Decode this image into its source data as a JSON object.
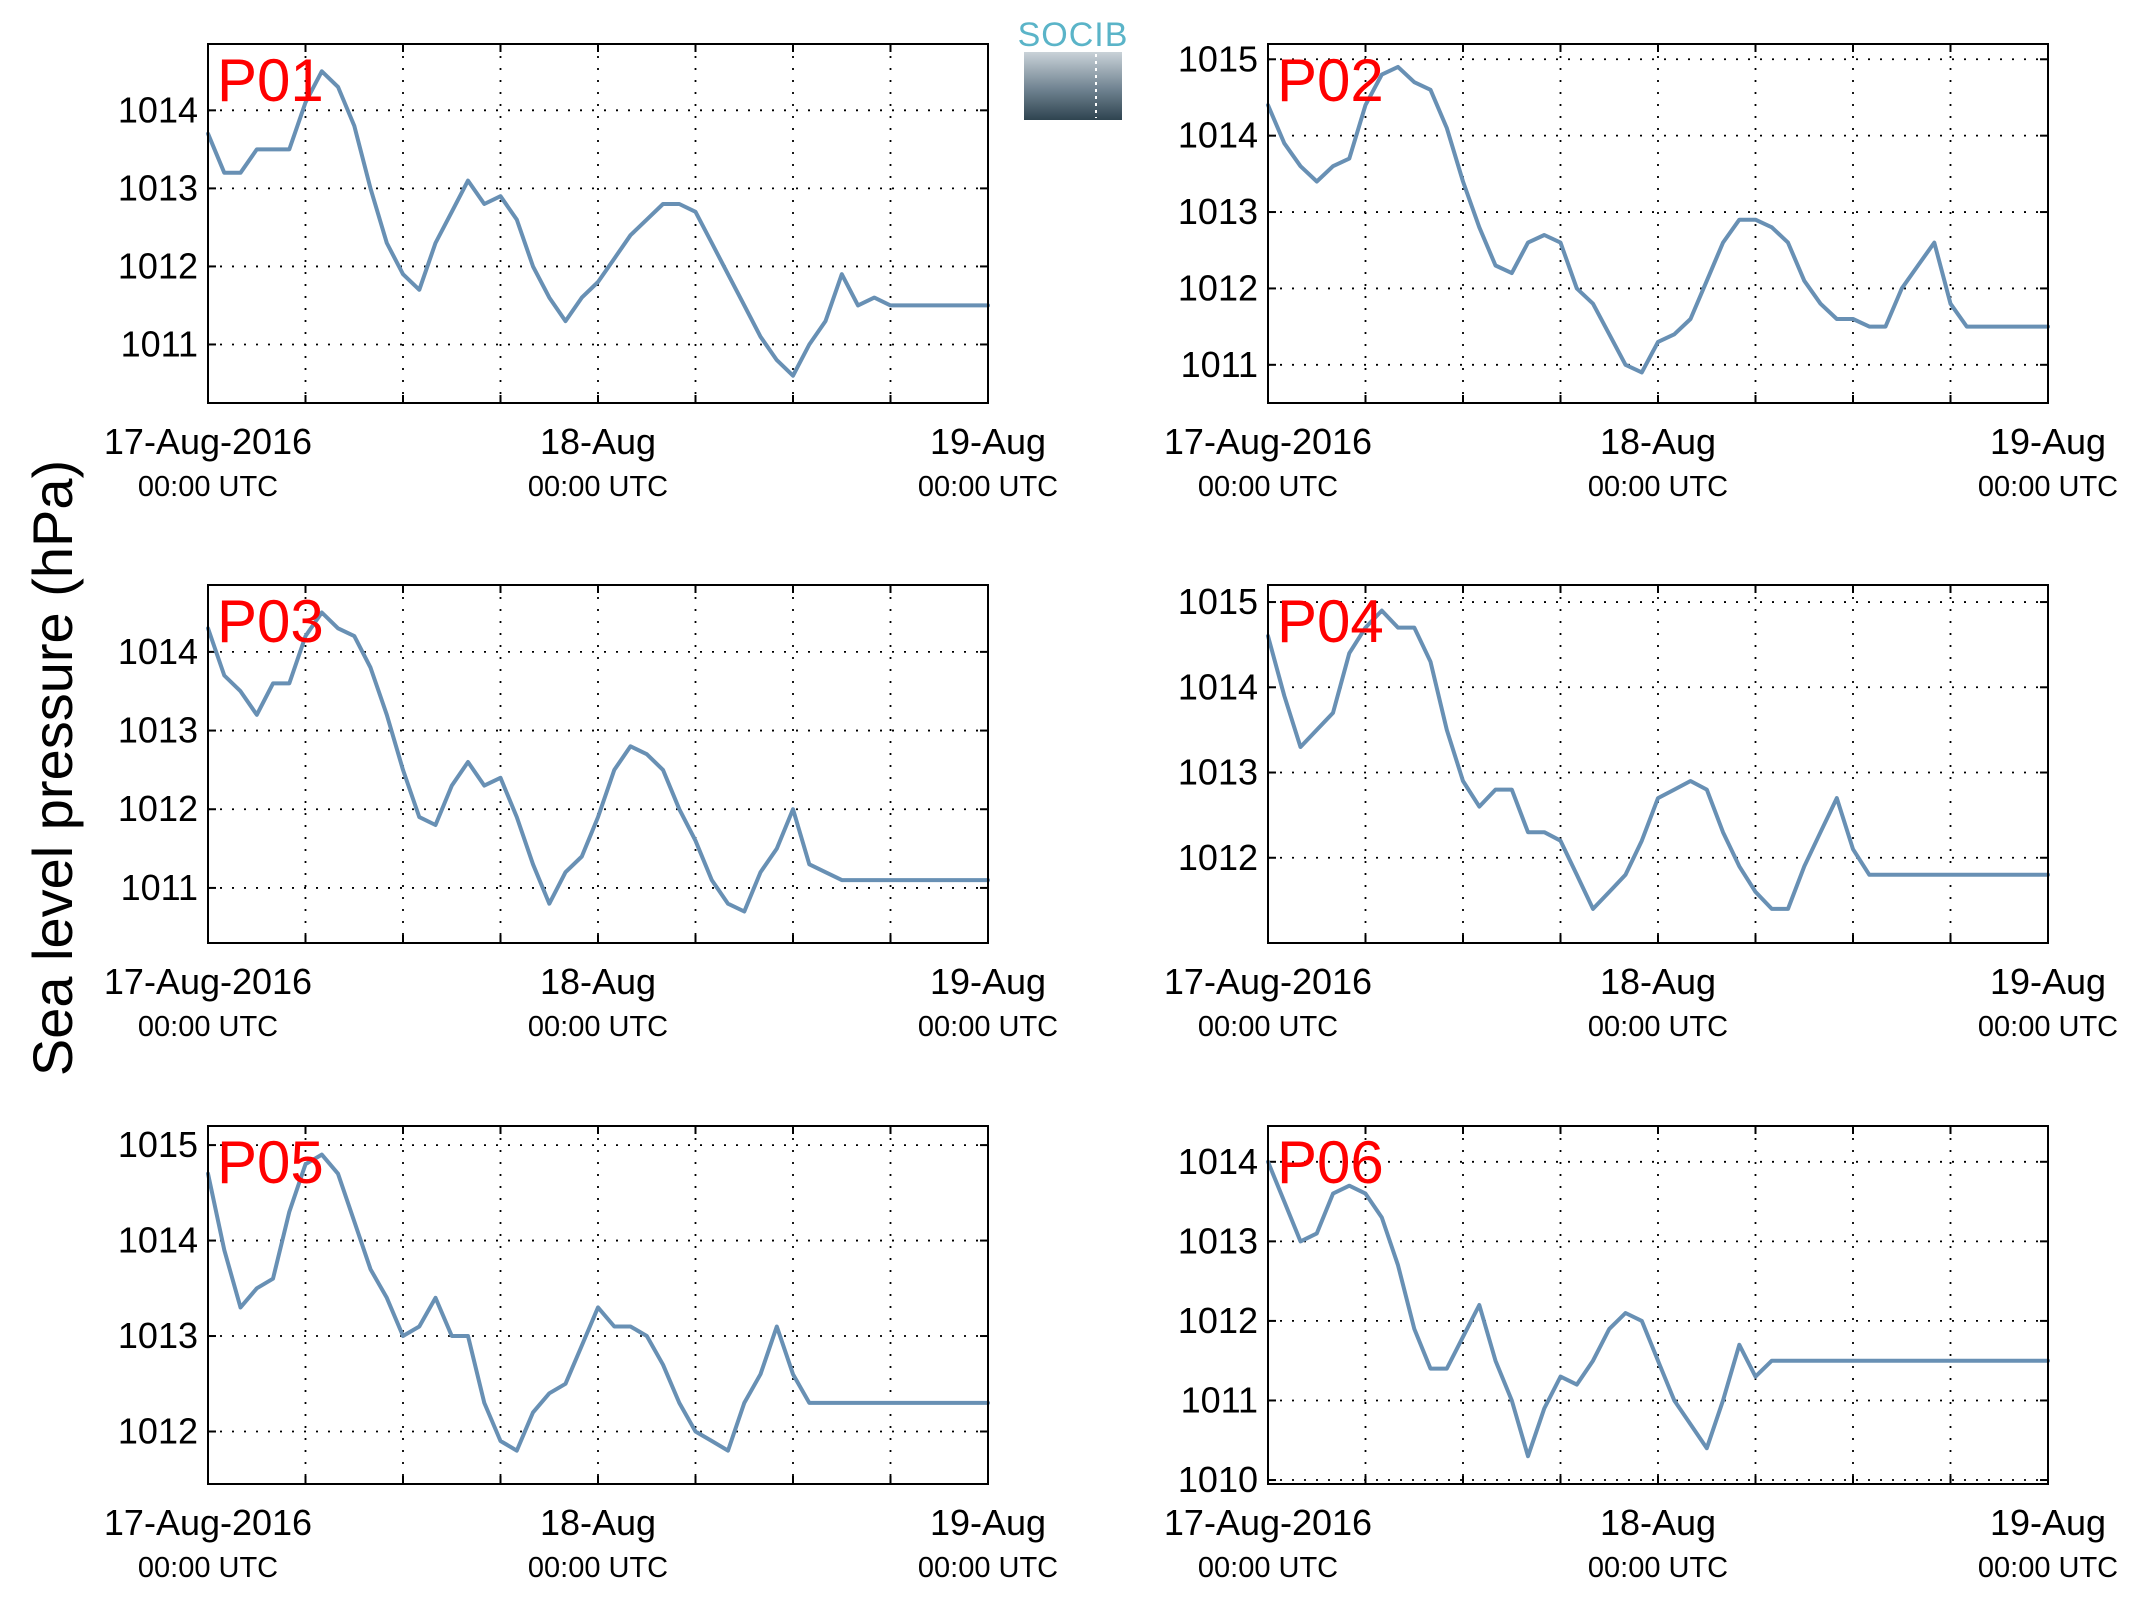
{
  "ylabel": "Sea level pressure (hPa)",
  "logo": {
    "text": "SOCIB"
  },
  "colors": {
    "line": "#6890b4",
    "panel_label": "#ff0000",
    "logo_accent": "#5ab4c8"
  },
  "chart_data": [
    {
      "type": "line",
      "label": "P01",
      "xlim": [
        0,
        48
      ],
      "ylim": [
        1010.25,
        1014.85
      ],
      "yticks": [
        1011,
        1012,
        1013,
        1014
      ],
      "ytick_labels": [
        "1011",
        "1012",
        "1013",
        "1014"
      ],
      "xticks": [
        0,
        6,
        12,
        18,
        24,
        30,
        36,
        42,
        48
      ],
      "xtick_labels": [
        {
          "x": 0,
          "date": "17-Aug-2016",
          "time": "00:00 UTC"
        },
        {
          "x": 24,
          "date": "18-Aug",
          "time": "00:00 UTC"
        },
        {
          "x": 48,
          "date": "19-Aug",
          "time": "00:00 UTC"
        }
      ],
      "grid": true,
      "x": [
        0,
        1,
        2,
        3,
        4,
        5,
        6,
        7,
        8,
        9,
        10,
        11,
        12,
        13,
        14,
        15,
        16,
        17,
        18,
        19,
        20,
        21,
        22,
        23,
        24,
        25,
        26,
        27,
        28,
        29,
        30,
        31,
        32,
        33,
        34,
        35,
        36,
        37,
        38,
        39,
        40,
        41,
        42,
        43,
        44,
        45,
        46,
        47,
        48
      ],
      "y": [
        1013.7,
        1013.2,
        1013.2,
        1013.5,
        1013.5,
        1013.5,
        1014.1,
        1014.5,
        1014.3,
        1013.8,
        1013.0,
        1012.3,
        1011.9,
        1011.7,
        1012.3,
        1012.7,
        1013.1,
        1012.8,
        1012.9,
        1012.6,
        1012.0,
        1011.6,
        1011.3,
        1011.6,
        1011.8,
        1012.1,
        1012.4,
        1012.6,
        1012.8,
        1012.8,
        1012.7,
        1012.3,
        1011.9,
        1011.5,
        1011.1,
        1010.8,
        1010.6,
        1011.0,
        1011.3,
        1011.9,
        1011.5,
        1011.6,
        1011.5,
        1011.5,
        1011.5,
        1011.5,
        1011.5,
        1011.5,
        1011.5
      ]
    },
    {
      "type": "line",
      "label": "P02",
      "xlim": [
        0,
        48
      ],
      "ylim": [
        1010.5,
        1015.2
      ],
      "yticks": [
        1011,
        1012,
        1013,
        1014,
        1015
      ],
      "ytick_labels": [
        "1011",
        "1012",
        "1013",
        "1014",
        "1015"
      ],
      "xticks": [
        0,
        6,
        12,
        18,
        24,
        30,
        36,
        42,
        48
      ],
      "xtick_labels": [
        {
          "x": 0,
          "date": "17-Aug-2016",
          "time": "00:00 UTC"
        },
        {
          "x": 24,
          "date": "18-Aug",
          "time": "00:00 UTC"
        },
        {
          "x": 48,
          "date": "19-Aug",
          "time": "00:00 UTC"
        }
      ],
      "grid": true,
      "x": [
        0,
        1,
        2,
        3,
        4,
        5,
        6,
        7,
        8,
        9,
        10,
        11,
        12,
        13,
        14,
        15,
        16,
        17,
        18,
        19,
        20,
        21,
        22,
        23,
        24,
        25,
        26,
        27,
        28,
        29,
        30,
        31,
        32,
        33,
        34,
        35,
        36,
        37,
        38,
        39,
        40,
        41,
        42,
        43,
        44,
        45,
        46,
        47,
        48
      ],
      "y": [
        1014.4,
        1013.9,
        1013.6,
        1013.4,
        1013.6,
        1013.7,
        1014.4,
        1014.8,
        1014.9,
        1014.7,
        1014.6,
        1014.1,
        1013.4,
        1012.8,
        1012.3,
        1012.2,
        1012.6,
        1012.7,
        1012.6,
        1012.0,
        1011.8,
        1011.4,
        1011.0,
        1010.9,
        1011.3,
        1011.4,
        1011.6,
        1012.1,
        1012.6,
        1012.9,
        1012.9,
        1012.8,
        1012.6,
        1012.1,
        1011.8,
        1011.6,
        1011.6,
        1011.5,
        1011.5,
        1012.0,
        1012.3,
        1012.6,
        1011.8,
        1011.5,
        1011.5,
        1011.5,
        1011.5,
        1011.5,
        1011.5
      ]
    },
    {
      "type": "line",
      "label": "P03",
      "xlim": [
        0,
        48
      ],
      "ylim": [
        1010.3,
        1014.85
      ],
      "yticks": [
        1011,
        1012,
        1013,
        1014
      ],
      "ytick_labels": [
        "1011",
        "1012",
        "1013",
        "1014"
      ],
      "xticks": [
        0,
        6,
        12,
        18,
        24,
        30,
        36,
        42,
        48
      ],
      "xtick_labels": [
        {
          "x": 0,
          "date": "17-Aug-2016",
          "time": "00:00 UTC"
        },
        {
          "x": 24,
          "date": "18-Aug",
          "time": "00:00 UTC"
        },
        {
          "x": 48,
          "date": "19-Aug",
          "time": "00:00 UTC"
        }
      ],
      "grid": true,
      "x": [
        0,
        1,
        2,
        3,
        4,
        5,
        6,
        7,
        8,
        9,
        10,
        11,
        12,
        13,
        14,
        15,
        16,
        17,
        18,
        19,
        20,
        21,
        22,
        23,
        24,
        25,
        26,
        27,
        28,
        29,
        30,
        31,
        32,
        33,
        34,
        35,
        36,
        37,
        38,
        39,
        40,
        41,
        42,
        43,
        44,
        45,
        46,
        47,
        48
      ],
      "y": [
        1014.3,
        1013.7,
        1013.5,
        1013.2,
        1013.6,
        1013.6,
        1014.2,
        1014.5,
        1014.3,
        1014.2,
        1013.8,
        1013.2,
        1012.5,
        1011.9,
        1011.8,
        1012.3,
        1012.6,
        1012.3,
        1012.4,
        1011.9,
        1011.3,
        1010.8,
        1011.2,
        1011.4,
        1011.9,
        1012.5,
        1012.8,
        1012.7,
        1012.5,
        1012.0,
        1011.6,
        1011.1,
        1010.8,
        1010.7,
        1011.2,
        1011.5,
        1012.0,
        1011.3,
        1011.2,
        1011.1,
        1011.1,
        1011.1,
        1011.1,
        1011.1,
        1011.1,
        1011.1,
        1011.1,
        1011.1,
        1011.1
      ]
    },
    {
      "type": "line",
      "label": "P04",
      "xlim": [
        0,
        48
      ],
      "ylim": [
        1011.0,
        1015.2
      ],
      "yticks": [
        1012,
        1013,
        1014,
        1015
      ],
      "ytick_labels": [
        "1012",
        "1013",
        "1014",
        "1015"
      ],
      "xticks": [
        0,
        6,
        12,
        18,
        24,
        30,
        36,
        42,
        48
      ],
      "xtick_labels": [
        {
          "x": 0,
          "date": "17-Aug-2016",
          "time": "00:00 UTC"
        },
        {
          "x": 24,
          "date": "18-Aug",
          "time": "00:00 UTC"
        },
        {
          "x": 48,
          "date": "19-Aug",
          "time": "00:00 UTC"
        }
      ],
      "grid": true,
      "x": [
        0,
        1,
        2,
        3,
        4,
        5,
        6,
        7,
        8,
        9,
        10,
        11,
        12,
        13,
        14,
        15,
        16,
        17,
        18,
        19,
        20,
        21,
        22,
        23,
        24,
        25,
        26,
        27,
        28,
        29,
        30,
        31,
        32,
        33,
        34,
        35,
        36,
        37,
        38,
        39,
        40,
        41,
        42,
        43,
        44,
        45,
        46,
        47,
        48
      ],
      "y": [
        1014.6,
        1013.9,
        1013.3,
        1013.5,
        1013.7,
        1014.4,
        1014.7,
        1014.9,
        1014.7,
        1014.7,
        1014.3,
        1013.5,
        1012.9,
        1012.6,
        1012.8,
        1012.8,
        1012.3,
        1012.3,
        1012.2,
        1011.8,
        1011.4,
        1011.6,
        1011.8,
        1012.2,
        1012.7,
        1012.8,
        1012.9,
        1012.8,
        1012.3,
        1011.9,
        1011.6,
        1011.4,
        1011.4,
        1011.9,
        1012.3,
        1012.7,
        1012.1,
        1011.8,
        1011.8,
        1011.8,
        1011.8,
        1011.8,
        1011.8,
        1011.8,
        1011.8,
        1011.8,
        1011.8,
        1011.8,
        1011.8
      ]
    },
    {
      "type": "line",
      "label": "P05",
      "xlim": [
        0,
        48
      ],
      "ylim": [
        1011.45,
        1015.2
      ],
      "yticks": [
        1012,
        1013,
        1014,
        1015
      ],
      "ytick_labels": [
        "1012",
        "1013",
        "1014",
        "1015"
      ],
      "xticks": [
        0,
        6,
        12,
        18,
        24,
        30,
        36,
        42,
        48
      ],
      "xtick_labels": [
        {
          "x": 0,
          "date": "17-Aug-2016",
          "time": "00:00 UTC"
        },
        {
          "x": 24,
          "date": "18-Aug",
          "time": "00:00 UTC"
        },
        {
          "x": 48,
          "date": "19-Aug",
          "time": "00:00 UTC"
        }
      ],
      "grid": true,
      "x": [
        0,
        1,
        2,
        3,
        4,
        5,
        6,
        7,
        8,
        9,
        10,
        11,
        12,
        13,
        14,
        15,
        16,
        17,
        18,
        19,
        20,
        21,
        22,
        23,
        24,
        25,
        26,
        27,
        28,
        29,
        30,
        31,
        32,
        33,
        34,
        35,
        36,
        37,
        38,
        39,
        40,
        41,
        42,
        43,
        44,
        45,
        46,
        47,
        48
      ],
      "y": [
        1014.7,
        1013.9,
        1013.3,
        1013.5,
        1013.6,
        1014.3,
        1014.8,
        1014.9,
        1014.7,
        1014.2,
        1013.7,
        1013.4,
        1013.0,
        1013.1,
        1013.4,
        1013.0,
        1013.0,
        1012.3,
        1011.9,
        1011.8,
        1012.2,
        1012.4,
        1012.5,
        1012.9,
        1013.3,
        1013.1,
        1013.1,
        1013.0,
        1012.7,
        1012.3,
        1012.0,
        1011.9,
        1011.8,
        1012.3,
        1012.6,
        1013.1,
        1012.6,
        1012.3,
        1012.3,
        1012.3,
        1012.3,
        1012.3,
        1012.3,
        1012.3,
        1012.3,
        1012.3,
        1012.3,
        1012.3,
        1012.3
      ]
    },
    {
      "type": "line",
      "label": "P06",
      "xlim": [
        0,
        48
      ],
      "ylim": [
        1009.95,
        1014.45
      ],
      "yticks": [
        1010,
        1011,
        1012,
        1013,
        1014
      ],
      "ytick_labels": [
        "1010",
        "1011",
        "1012",
        "1013",
        "1014"
      ],
      "xticks": [
        0,
        6,
        12,
        18,
        24,
        30,
        36,
        42,
        48
      ],
      "xtick_labels": [
        {
          "x": 0,
          "date": "17-Aug-2016",
          "time": "00:00 UTC"
        },
        {
          "x": 24,
          "date": "18-Aug",
          "time": "00:00 UTC"
        },
        {
          "x": 48,
          "date": "19-Aug",
          "time": "00:00 UTC"
        }
      ],
      "grid": true,
      "x": [
        0,
        1,
        2,
        3,
        4,
        5,
        6,
        7,
        8,
        9,
        10,
        11,
        12,
        13,
        14,
        15,
        16,
        17,
        18,
        19,
        20,
        21,
        22,
        23,
        24,
        25,
        26,
        27,
        28,
        29,
        30,
        31,
        32,
        33,
        34,
        35,
        36,
        37,
        38,
        39,
        40,
        41,
        42,
        43,
        44,
        45,
        46,
        47,
        48
      ],
      "y": [
        1014.0,
        1013.5,
        1013.0,
        1013.1,
        1013.6,
        1013.7,
        1013.6,
        1013.3,
        1012.7,
        1011.9,
        1011.4,
        1011.4,
        1011.8,
        1012.2,
        1011.5,
        1011.0,
        1010.3,
        1010.9,
        1011.3,
        1011.2,
        1011.5,
        1011.9,
        1012.1,
        1012.0,
        1011.5,
        1011.0,
        1010.7,
        1010.4,
        1011.0,
        1011.7,
        1011.3,
        1011.5,
        1011.5,
        1011.5,
        1011.5,
        1011.5,
        1011.5,
        1011.5,
        1011.5,
        1011.5,
        1011.5,
        1011.5,
        1011.5,
        1011.5,
        1011.5,
        1011.5,
        1011.5,
        1011.5,
        1011.5
      ]
    }
  ]
}
